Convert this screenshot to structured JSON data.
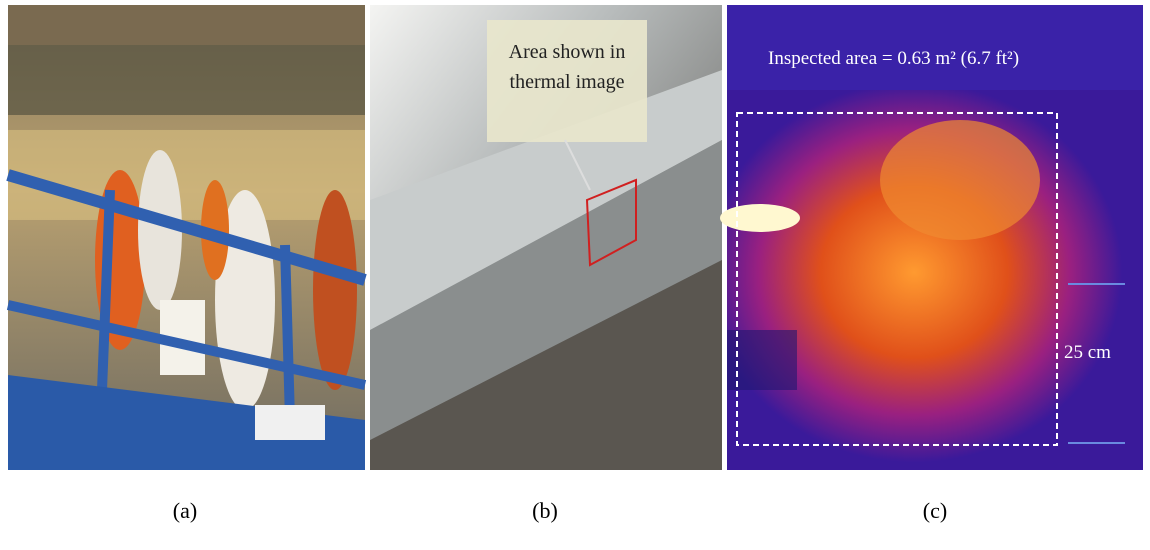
{
  "panels": [
    {
      "label": "(a)"
    },
    {
      "label": "(b)",
      "annotation": [
        "Area shown in",
        "thermal image"
      ]
    },
    {
      "label": "(c)",
      "annotation": "Inspected area = 0.63 m² (6.7 ft²)",
      "scale_label": "25 cm"
    }
  ]
}
